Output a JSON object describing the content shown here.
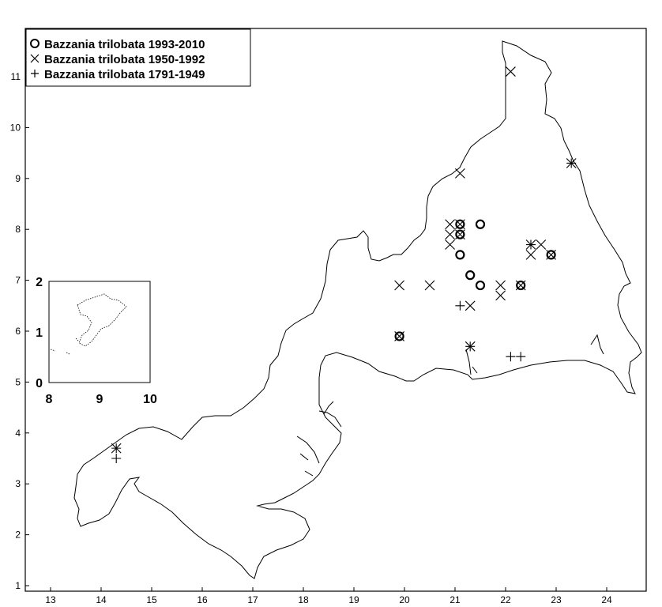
{
  "legend": [
    {
      "symbol": "circle",
      "label": "Bazzania trilobata 1993-2010"
    },
    {
      "symbol": "x",
      "label": "Bazzania trilobata 1950-1992"
    },
    {
      "symbol": "plus",
      "label": "Bazzania trilobata 1791-1949"
    }
  ],
  "chart_data": {
    "type": "scatter",
    "xlim": [
      12.6,
      24.8
    ],
    "ylim": [
      0.9,
      11.9
    ],
    "x_ticks": [
      13,
      14,
      15,
      16,
      17,
      18,
      19,
      20,
      21,
      22,
      23,
      24
    ],
    "y_ticks": [
      1,
      2,
      3,
      4,
      5,
      6,
      7,
      8,
      9,
      10,
      11
    ],
    "series": [
      {
        "name": "Bazzania trilobata 1993-2010",
        "marker": "circle",
        "points": [
          [
            19.9,
            5.9
          ],
          [
            21.1,
            8.1
          ],
          [
            21.1,
            7.9
          ],
          [
            21.1,
            7.5
          ],
          [
            21.5,
            8.1
          ],
          [
            21.3,
            7.1
          ],
          [
            21.5,
            6.9
          ],
          [
            22.3,
            6.9
          ],
          [
            22.9,
            7.5
          ]
        ]
      },
      {
        "name": "Bazzania trilobata 1950-1992",
        "marker": "x",
        "points": [
          [
            22.1,
            11.1
          ],
          [
            23.3,
            9.3
          ],
          [
            21.1,
            9.1
          ],
          [
            20.9,
            8.1
          ],
          [
            20.9,
            7.9
          ],
          [
            20.9,
            7.7
          ],
          [
            21.1,
            8.1
          ],
          [
            21.1,
            7.9
          ],
          [
            22.5,
            7.7
          ],
          [
            22.5,
            7.5
          ],
          [
            22.7,
            7.7
          ],
          [
            22.9,
            7.5
          ],
          [
            19.9,
            6.9
          ],
          [
            20.5,
            6.9
          ],
          [
            21.9,
            6.9
          ],
          [
            21.9,
            6.7
          ],
          [
            22.3,
            6.9
          ],
          [
            21.3,
            6.5
          ],
          [
            21.3,
            5.7
          ],
          [
            19.9,
            5.9
          ],
          [
            14.3,
            3.7
          ]
        ]
      },
      {
        "name": "Bazzania trilobata 1791-1949",
        "marker": "plus",
        "points": [
          [
            23.3,
            9.3
          ],
          [
            22.5,
            7.7
          ],
          [
            21.1,
            6.5
          ],
          [
            21.3,
            5.7
          ],
          [
            22.1,
            5.5
          ],
          [
            22.3,
            5.5
          ],
          [
            14.3,
            3.7
          ],
          [
            14.3,
            3.5
          ]
        ]
      }
    ],
    "inset": {
      "x_ticks": [
        8,
        9,
        10
      ],
      "y_ticks": [
        0,
        1,
        2
      ],
      "xlim": [
        8,
        10
      ],
      "ylim": [
        0,
        2
      ]
    }
  }
}
